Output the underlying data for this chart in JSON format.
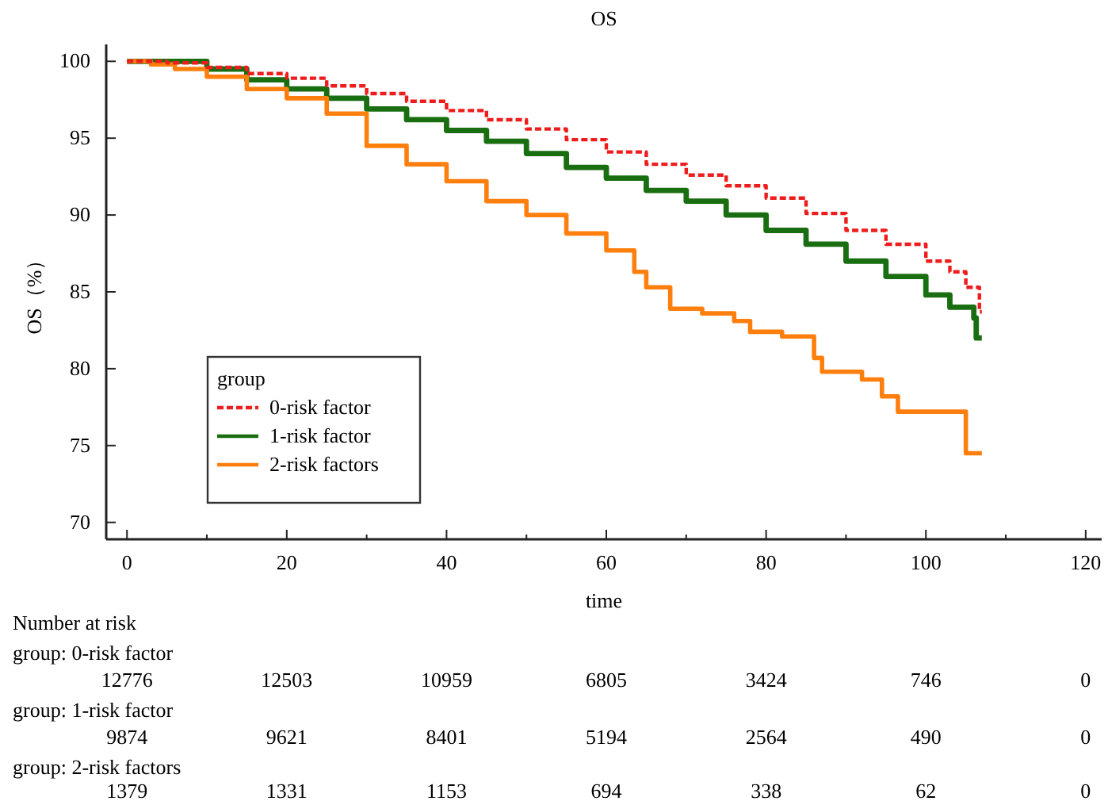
{
  "chart_data": {
    "type": "step",
    "title": "OS",
    "xlabel": "time",
    "ylabel": "OS（%）",
    "legend_title": "group",
    "legend": "bottom left",
    "grid": false,
    "xlim": [
      -2.6,
      122
    ],
    "ylim": [
      68.9,
      101.1
    ],
    "xticks": [
      0,
      {
        "value": 10,
        "label": null
      },
      20,
      {
        "value": 30,
        "label": null
      },
      40,
      {
        "value": 50,
        "label": null
      },
      60,
      {
        "value": 70,
        "label": null
      },
      80,
      {
        "value": 90,
        "label": null
      },
      100,
      {
        "value": 110,
        "label": null
      },
      120
    ],
    "yticks": [
      70,
      75,
      80,
      85,
      90,
      95,
      100
    ],
    "series": [
      {
        "name": "0-risk factor",
        "color": "#ee1c1c",
        "line_style": "dashed",
        "x": [
          0,
          5,
          10,
          15,
          20,
          25,
          30,
          35,
          40,
          45,
          50,
          55,
          60,
          65,
          70,
          75,
          80,
          85,
          90,
          95,
          100,
          103,
          105,
          106.7,
          107
        ],
        "values": [
          100,
          99.9,
          99.6,
          99.2,
          98.9,
          98.4,
          97.9,
          97.4,
          96.8,
          96.2,
          95.6,
          94.9,
          94.1,
          93.3,
          92.6,
          91.9,
          91.1,
          90.1,
          89.0,
          88.1,
          87.0,
          86.3,
          85.3,
          83.7,
          83.7
        ]
      },
      {
        "name": "1-risk factor",
        "color": "#1a6e12",
        "line_style": "solid",
        "x": [
          0,
          5,
          10,
          15,
          20,
          25,
          30,
          35,
          40,
          45,
          50,
          55,
          60,
          65,
          70,
          75,
          80,
          85,
          90,
          95,
          100,
          103,
          106,
          106.3,
          107
        ],
        "values": [
          100,
          100,
          99.5,
          98.8,
          98.2,
          97.6,
          96.9,
          96.2,
          95.5,
          94.8,
          94.0,
          93.1,
          92.4,
          91.6,
          90.9,
          90.0,
          89.0,
          88.1,
          87.0,
          86.0,
          84.8,
          84.0,
          83.3,
          82.0,
          82.0
        ]
      },
      {
        "name": "2-risk factors",
        "color": "#ff7f0e",
        "line_style": "solid",
        "x": [
          0,
          3,
          6,
          10,
          15,
          20,
          25,
          30,
          35,
          40,
          45,
          50,
          55,
          60,
          63.5,
          65,
          68,
          72,
          76,
          78,
          82,
          86,
          87,
          92,
          94.5,
          96.5,
          105,
          107
        ],
        "values": [
          100,
          99.8,
          99.5,
          99.0,
          98.2,
          97.6,
          96.6,
          94.5,
          93.3,
          92.2,
          90.9,
          90.0,
          88.8,
          87.7,
          86.3,
          85.3,
          83.9,
          83.6,
          83.1,
          82.4,
          82.1,
          80.7,
          79.8,
          79.3,
          78.2,
          77.2,
          74.5,
          74.5
        ]
      }
    ],
    "annotations": [
      "Number at risk",
      "group: 0-risk factor",
      "12776",
      "12503",
      "10959",
      "6805",
      "3424",
      "746",
      "0",
      "group: 1-risk factor",
      "9874",
      "9621",
      "8401",
      "5194",
      "2564",
      "490",
      "0",
      "group: 2-risk factors",
      "1379",
      "1331",
      "1153",
      "694",
      "338",
      "62",
      "0"
    ]
  }
}
